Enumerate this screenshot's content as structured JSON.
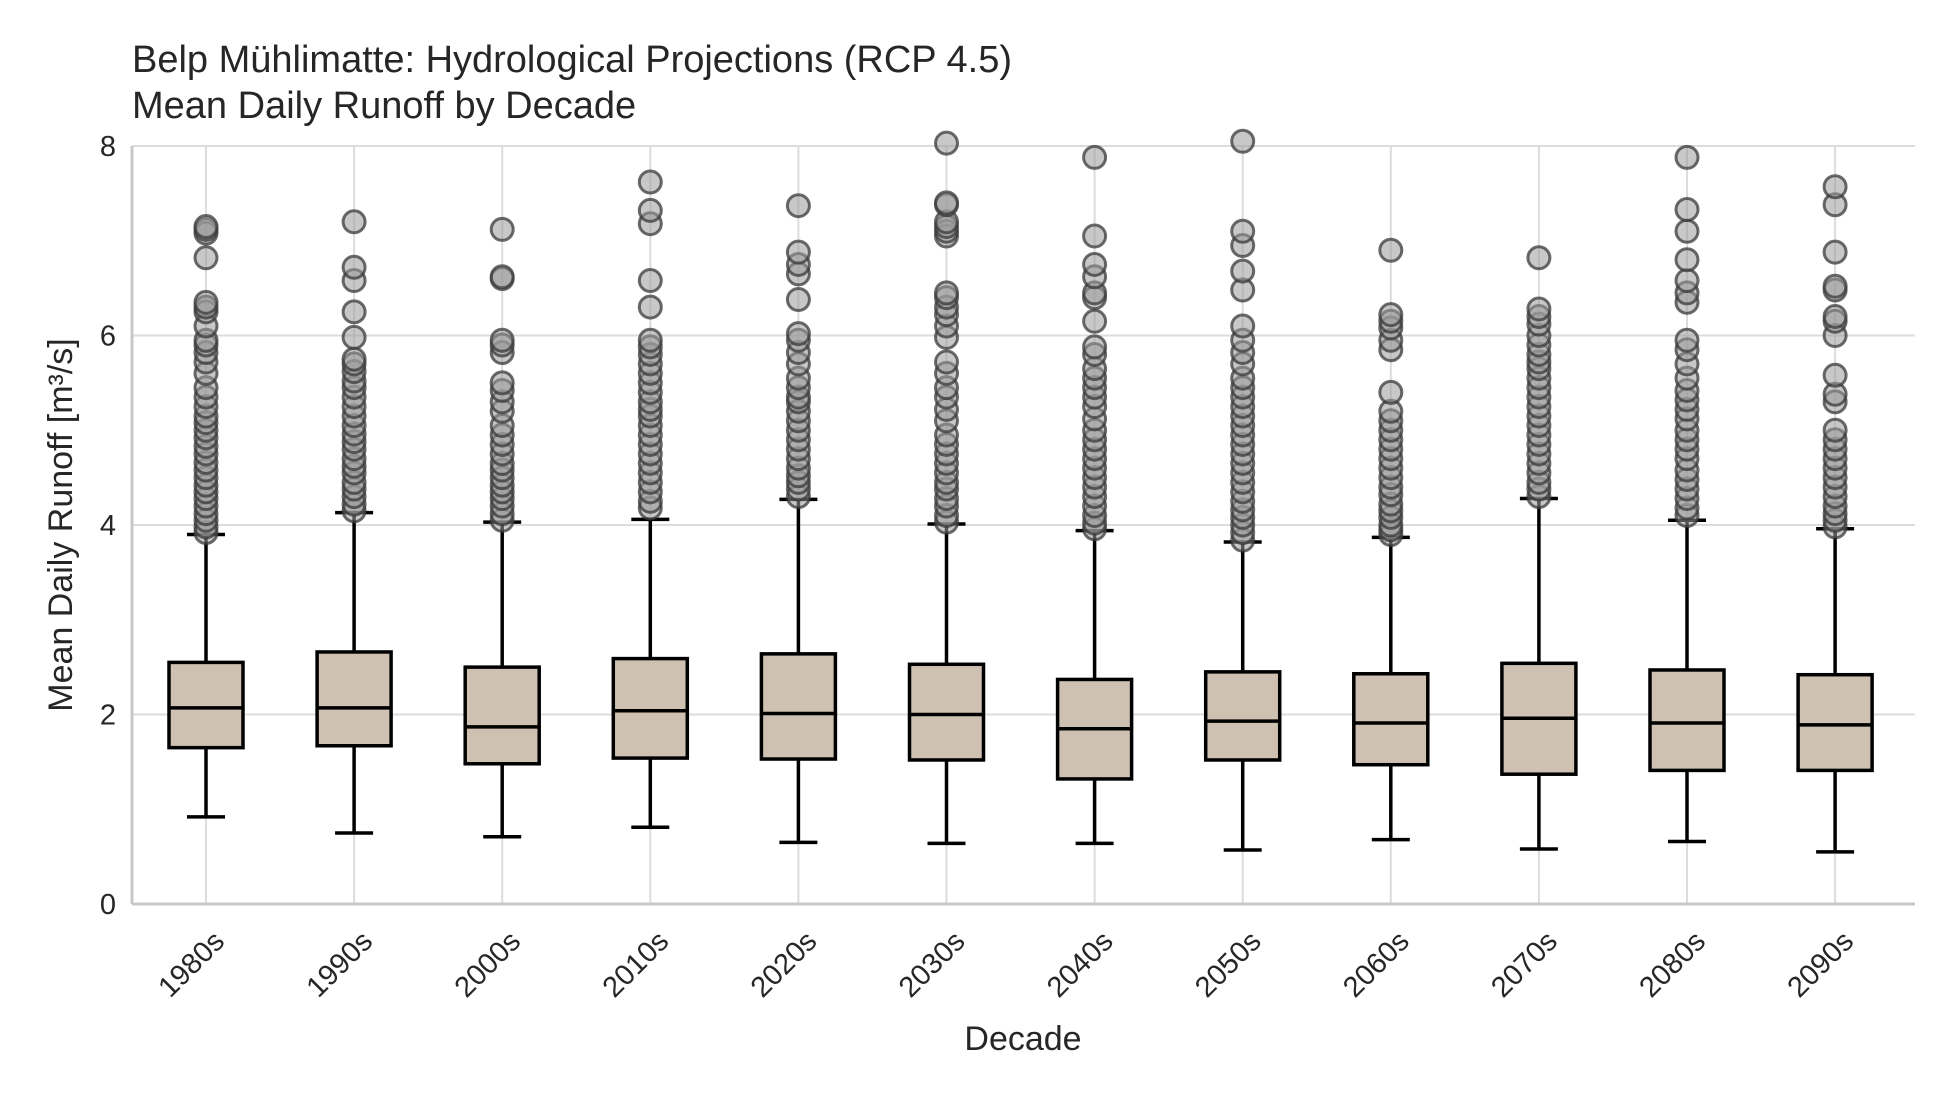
{
  "chart_data": {
    "type": "box",
    "title": "Belp Mühlimatte: Hydrological Projections (RCP 4.5)",
    "subtitle": "Mean Daily Runoff by Decade",
    "xlabel": "Decade",
    "ylabel": "Mean Daily Runoff [m³/s]",
    "ylim": [
      0,
      8
    ],
    "yticks": [
      0,
      2,
      4,
      6,
      8
    ],
    "grid": true,
    "legend": "none",
    "colors": {
      "box_fill": "#cfc1b2",
      "box_edge": "#000000",
      "flier": "#9a9a9a",
      "grid": "#dcdcdc"
    },
    "categories": [
      "1980s",
      "1990s",
      "2000s",
      "2010s",
      "2020s",
      "2030s",
      "2040s",
      "2050s",
      "2060s",
      "2070s",
      "2080s",
      "2090s"
    ],
    "boxes": [
      {
        "whislo": 0.92,
        "q1": 1.65,
        "med": 2.07,
        "q3": 2.55,
        "whishi": 3.9,
        "fliers": [
          3.92,
          3.98,
          4.05,
          4.12,
          4.2,
          4.28,
          4.35,
          4.42,
          4.5,
          4.58,
          4.66,
          4.75,
          4.83,
          4.92,
          5.0,
          5.08,
          5.15,
          5.25,
          5.35,
          5.45,
          5.6,
          5.72,
          5.82,
          5.9,
          5.95,
          6.1,
          6.25,
          6.3,
          6.35,
          6.82,
          7.08,
          7.12,
          7.15
        ]
      },
      {
        "whislo": 0.75,
        "q1": 1.67,
        "med": 2.07,
        "q3": 2.66,
        "whishi": 4.13,
        "fliers": [
          4.15,
          4.22,
          4.3,
          4.38,
          4.45,
          4.55,
          4.62,
          4.7,
          4.8,
          4.88,
          4.96,
          5.05,
          5.15,
          5.25,
          5.35,
          5.45,
          5.52,
          5.62,
          5.7,
          5.75,
          5.98,
          6.25,
          6.58,
          6.72,
          7.2
        ]
      },
      {
        "whislo": 0.71,
        "q1": 1.48,
        "med": 1.87,
        "q3": 2.5,
        "whishi": 4.03,
        "fliers": [
          4.05,
          4.12,
          4.2,
          4.28,
          4.35,
          4.42,
          4.5,
          4.58,
          4.65,
          4.75,
          4.85,
          4.95,
          5.05,
          5.2,
          5.3,
          5.42,
          5.5,
          5.82,
          5.9,
          5.95,
          6.6,
          6.62,
          7.12
        ]
      },
      {
        "whislo": 0.81,
        "q1": 1.54,
        "med": 2.04,
        "q3": 2.59,
        "whishi": 4.06,
        "fliers": [
          4.18,
          4.25,
          4.35,
          4.45,
          4.55,
          4.65,
          4.75,
          4.85,
          4.95,
          5.05,
          5.15,
          5.22,
          5.3,
          5.4,
          5.5,
          5.6,
          5.7,
          5.8,
          5.88,
          5.95,
          6.3,
          6.58,
          7.18,
          7.32,
          7.62
        ]
      },
      {
        "whislo": 0.65,
        "q1": 1.53,
        "med": 2.01,
        "q3": 2.64,
        "whishi": 4.27,
        "fliers": [
          4.3,
          4.38,
          4.45,
          4.52,
          4.6,
          4.7,
          4.8,
          4.9,
          5.0,
          5.1,
          5.2,
          5.3,
          5.35,
          5.45,
          5.55,
          5.7,
          5.82,
          5.95,
          6.02,
          6.38,
          6.65,
          6.75,
          6.88,
          7.37
        ]
      },
      {
        "whislo": 0.64,
        "q1": 1.52,
        "med": 2.0,
        "q3": 2.53,
        "whishi": 4.01,
        "fliers": [
          4.03,
          4.1,
          4.2,
          4.28,
          4.38,
          4.45,
          4.55,
          4.65,
          4.75,
          4.85,
          4.95,
          5.1,
          5.22,
          5.35,
          5.45,
          5.6,
          5.72,
          5.98,
          6.1,
          6.22,
          6.3,
          6.4,
          6.45,
          7.05,
          7.1,
          7.15,
          7.2,
          7.38,
          7.4,
          8.03
        ]
      },
      {
        "whislo": 0.64,
        "q1": 1.32,
        "med": 1.85,
        "q3": 2.37,
        "whishi": 3.94,
        "fliers": [
          3.96,
          4.02,
          4.1,
          4.2,
          4.3,
          4.4,
          4.5,
          4.6,
          4.7,
          4.8,
          4.9,
          5.0,
          5.12,
          5.25,
          5.35,
          5.45,
          5.55,
          5.65,
          5.8,
          5.88,
          6.15,
          6.4,
          6.45,
          6.62,
          6.75,
          7.05,
          7.88
        ]
      },
      {
        "whislo": 0.57,
        "q1": 1.52,
        "med": 1.93,
        "q3": 2.45,
        "whishi": 3.82,
        "fliers": [
          3.84,
          3.92,
          4.0,
          4.08,
          4.16,
          4.25,
          4.35,
          4.45,
          4.55,
          4.65,
          4.75,
          4.85,
          4.95,
          5.05,
          5.15,
          5.25,
          5.35,
          5.45,
          5.55,
          5.7,
          5.82,
          5.95,
          6.1,
          6.48,
          6.68,
          6.95,
          7.1,
          8.05
        ]
      },
      {
        "whislo": 0.68,
        "q1": 1.47,
        "med": 1.91,
        "q3": 2.43,
        "whishi": 3.87,
        "fliers": [
          3.9,
          3.95,
          4.0,
          4.08,
          4.15,
          4.22,
          4.32,
          4.4,
          4.5,
          4.6,
          4.7,
          4.8,
          4.9,
          5.0,
          5.1,
          5.2,
          5.4,
          5.85,
          5.95,
          6.08,
          6.15,
          6.22,
          6.9
        ]
      },
      {
        "whislo": 0.58,
        "q1": 1.37,
        "med": 1.96,
        "q3": 2.54,
        "whishi": 4.28,
        "fliers": [
          4.3,
          4.38,
          4.45,
          4.55,
          4.65,
          4.75,
          4.85,
          4.95,
          5.05,
          5.15,
          5.25,
          5.35,
          5.45,
          5.55,
          5.65,
          5.72,
          5.8,
          5.9,
          6.0,
          6.12,
          6.2,
          6.28,
          6.82
        ]
      },
      {
        "whislo": 0.66,
        "q1": 1.41,
        "med": 1.91,
        "q3": 2.47,
        "whishi": 4.05,
        "fliers": [
          4.1,
          4.18,
          4.28,
          4.38,
          4.48,
          4.58,
          4.7,
          4.8,
          4.9,
          5.0,
          5.12,
          5.22,
          5.32,
          5.42,
          5.55,
          5.7,
          5.85,
          5.95,
          6.35,
          6.45,
          6.58,
          6.8,
          7.1,
          7.33,
          7.88
        ]
      },
      {
        "whislo": 0.55,
        "q1": 1.41,
        "med": 1.89,
        "q3": 2.42,
        "whishi": 3.96,
        "fliers": [
          3.98,
          4.05,
          4.12,
          4.2,
          4.3,
          4.4,
          4.5,
          4.6,
          4.7,
          4.8,
          4.9,
          5.0,
          5.3,
          5.38,
          5.58,
          6.0,
          6.15,
          6.2,
          6.48,
          6.52,
          6.88,
          7.38,
          7.57
        ]
      }
    ]
  }
}
